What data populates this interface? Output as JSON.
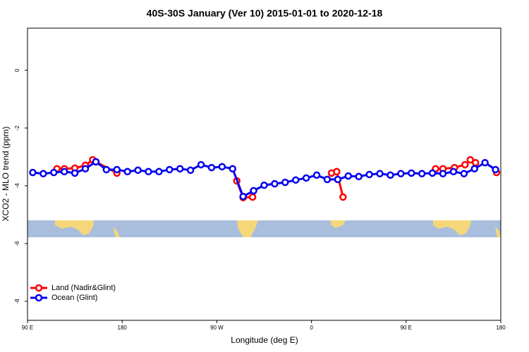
{
  "chart_data": {
    "type": "line",
    "title": "40S-30S January (Ver 10)   2015-01-01 to 2020-12-18",
    "x_label": "Longitude (deg E)",
    "y_label": "XCO2 - MLO trend (ppm)",
    "xlim": [
      90,
      540
    ],
    "ylim": [
      -8.66,
      1.46
    ],
    "xticks": [
      {
        "value": 90,
        "label": "90 E"
      },
      180,
      {
        "value": 270,
        "label": "90 W"
      },
      {
        "value": 360,
        "label": "0"
      },
      {
        "value": 450,
        "label": "90 E"
      },
      {
        "value": 540,
        "label": "180"
      }
    ],
    "yticks": [
      0,
      -2,
      -4,
      -6,
      -8
    ],
    "legend": "lower left",
    "series": [
      {
        "name": "Land (Nadir&Glint)",
        "color": "#ff0000",
        "x": [
          118,
          125,
          135,
          145,
          152,
          155,
          175,
          null,
          289,
          295,
          304,
          null,
          379,
          384,
          390,
          null,
          478,
          485,
          496,
          506,
          511,
          516,
          null,
          536
        ],
        "values": [
          -3.41,
          -3.41,
          -3.39,
          -3.29,
          -3.1,
          -3.17,
          -3.56,
          null,
          -3.83,
          -4.41,
          -4.39,
          null,
          -3.56,
          -3.51,
          -4.39,
          null,
          -3.41,
          -3.41,
          -3.37,
          -3.27,
          -3.1,
          -3.2,
          null,
          -3.54
        ]
      },
      {
        "name": "Ocean (Glint)",
        "color": "#0000ee",
        "x": [
          95,
          105,
          115,
          125,
          135,
          145,
          155,
          165,
          175,
          185,
          195,
          205,
          215,
          225,
          235,
          245,
          255,
          265,
          275,
          285,
          295,
          305,
          315,
          325,
          335,
          345,
          355,
          365,
          375,
          385,
          395,
          405,
          415,
          425,
          435,
          445,
          455,
          465,
          475,
          485,
          495,
          505,
          515,
          525,
          535
        ],
        "values": [
          -3.54,
          -3.58,
          -3.54,
          -3.51,
          -3.56,
          -3.41,
          -3.17,
          -3.44,
          -3.44,
          -3.51,
          -3.46,
          -3.51,
          -3.51,
          -3.44,
          -3.41,
          -3.46,
          -3.27,
          -3.37,
          -3.34,
          -3.41,
          -4.37,
          -4.17,
          -3.98,
          -3.93,
          -3.88,
          -3.8,
          -3.73,
          -3.63,
          -3.78,
          -3.78,
          -3.66,
          -3.68,
          -3.61,
          -3.58,
          -3.63,
          -3.58,
          -3.56,
          -3.58,
          -3.56,
          -3.58,
          -3.51,
          -3.58,
          -3.41,
          -3.2,
          -3.44
        ]
      }
    ]
  }
}
